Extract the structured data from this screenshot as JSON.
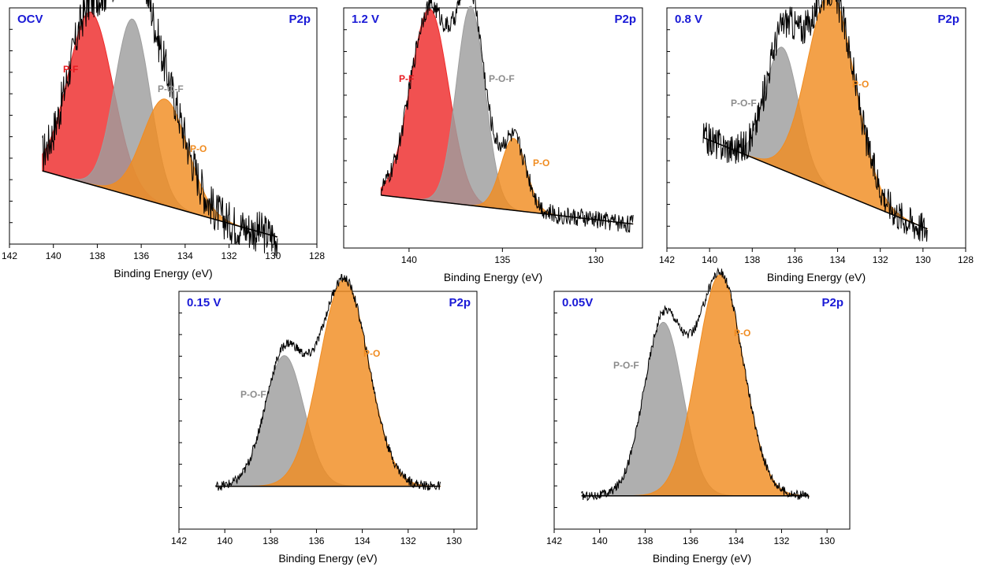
{
  "chart_data": [
    {
      "type": "area",
      "title": "OCV",
      "annotation": "P2p",
      "xlabel": "Binding Energy (eV)",
      "xlim": [
        142,
        128
      ],
      "x_ticks": [
        142,
        140,
        138,
        136,
        134,
        132,
        130,
        128
      ],
      "raw_range": [
        140.5,
        129.8
      ],
      "background": [
        [
          140.5,
          0.31
        ],
        [
          129.8,
          0.03
        ]
      ],
      "noise": 0.09,
      "series": [
        {
          "name": "P-F",
          "color": "#ee2b2b",
          "center": 138.3,
          "height": 0.73,
          "fwhm": 2.4
        },
        {
          "name": "P-O-F",
          "color": "#9e9e9e",
          "center": 136.4,
          "height": 0.75,
          "fwhm": 1.9
        },
        {
          "name": "P-O",
          "color": "#f08c21",
          "center": 134.9,
          "height": 0.45,
          "fwhm": 2.4
        }
      ]
    },
    {
      "type": "area",
      "title": "1.2 V",
      "annotation": "P2p",
      "xlabel": "Binding Energy (eV)",
      "xlim": [
        143.5,
        127.5
      ],
      "x_ticks": [
        140,
        135,
        130
      ],
      "raw_range": [
        141.5,
        128.0
      ],
      "background": [
        [
          141.5,
          0.22
        ],
        [
          128.0,
          0.1
        ]
      ],
      "noise": 0.04,
      "series": [
        {
          "name": "P-F",
          "color": "#ee2b2b",
          "center": 138.9,
          "height": 0.8,
          "fwhm": 2.4
        },
        {
          "name": "P-O-F",
          "color": "#9e9e9e",
          "center": 136.7,
          "height": 0.83,
          "fwhm": 1.8
        },
        {
          "name": "P-O",
          "color": "#f08c21",
          "center": 134.4,
          "height": 0.3,
          "fwhm": 1.6
        }
      ]
    },
    {
      "type": "area",
      "title": "0.8 V",
      "annotation": "P2p",
      "xlabel": "Binding Energy (eV)",
      "xlim": [
        142,
        128
      ],
      "x_ticks": [
        142,
        140,
        138,
        136,
        134,
        132,
        130,
        128
      ],
      "raw_range": [
        140.3,
        129.8
      ],
      "background": [
        [
          140.3,
          0.46
        ],
        [
          129.8,
          0.08
        ]
      ],
      "noise": 0.07,
      "series": [
        {
          "name": "P-O-F",
          "color": "#9e9e9e",
          "center": 136.6,
          "height": 0.51,
          "fwhm": 1.8
        },
        {
          "name": "P-O",
          "color": "#f08c21",
          "center": 134.3,
          "height": 0.82,
          "fwhm": 2.6
        }
      ]
    },
    {
      "type": "area",
      "title": "0.15 V",
      "annotation": "P2p",
      "xlabel": "Binding Energy (eV)",
      "xlim": [
        142,
        129
      ],
      "x_ticks": [
        142,
        140,
        138,
        136,
        134,
        132,
        130
      ],
      "raw_range": [
        140.4,
        130.6
      ],
      "background": [
        [
          140.4,
          0.18
        ],
        [
          130.6,
          0.18
        ]
      ],
      "noise": 0.02,
      "series": [
        {
          "name": "P-O-F",
          "color": "#9e9e9e",
          "center": 137.4,
          "height": 0.55,
          "fwhm": 2.0
        },
        {
          "name": "P-O",
          "color": "#f08c21",
          "center": 134.8,
          "height": 0.87,
          "fwhm": 2.5
        }
      ]
    },
    {
      "type": "area",
      "title": "0.05V",
      "annotation": "P2p",
      "xlabel": "Binding Energy (eV)",
      "xlim": [
        142,
        129
      ],
      "x_ticks": [
        142,
        140,
        138,
        136,
        134,
        132,
        130
      ],
      "raw_range": [
        140.8,
        130.8
      ],
      "background": [
        [
          140.8,
          0.14
        ],
        [
          130.8,
          0.14
        ]
      ],
      "noise": 0.02,
      "series": [
        {
          "name": "P-O-F",
          "color": "#9e9e9e",
          "center": 137.2,
          "height": 0.73,
          "fwhm": 2.0
        },
        {
          "name": "P-O",
          "color": "#f08c21",
          "center": 134.7,
          "height": 0.93,
          "fwhm": 2.4
        }
      ]
    }
  ],
  "colors": {
    "title": "#1a1ad6",
    "raw_line": "#000000",
    "background_line": "#000000",
    "axis": "#000000"
  }
}
